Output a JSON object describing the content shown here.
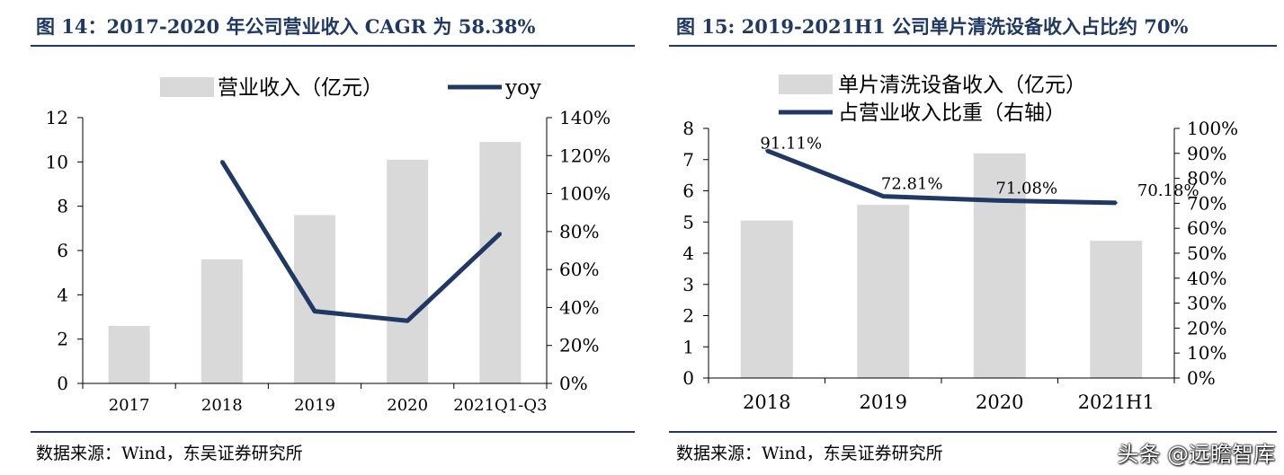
{
  "figures": [
    {
      "title": "图 14：2017-2020 年公司营业收入 CAGR 为 58.38%",
      "source": "数据来源：Wind，东吴证券研究所"
    },
    {
      "title": "图 15: 2019-2021H1 公司单片清洗设备收入占比约 70%",
      "source": "数据来源：Wind，东吴证券研究所"
    }
  ],
  "watermark": "头条 @远瞻智库",
  "colors": {
    "bar": "#d9d9d9",
    "line": "#1f3864",
    "title": "#1f3864"
  },
  "chart_data": [
    {
      "type": "bar",
      "categories": [
        "2017",
        "2018",
        "2019",
        "2020",
        "2021Q1-Q3"
      ],
      "series": [
        {
          "name": "营业收入（亿元）",
          "type": "bar",
          "axis": "left",
          "values": [
            2.6,
            5.6,
            7.6,
            10.1,
            10.9
          ]
        },
        {
          "name": "yoy",
          "type": "line",
          "axis": "right",
          "values": [
            null,
            1.17,
            0.38,
            0.33,
            0.79
          ]
        }
      ],
      "ylim": [
        0,
        12
      ],
      "yticks": [
        "0",
        "2",
        "4",
        "6",
        "8",
        "10",
        "12"
      ],
      "y2lim": [
        0,
        1.4
      ],
      "y2ticks": [
        "0%",
        "20%",
        "40%",
        "60%",
        "80%",
        "100%",
        "120%",
        "140%"
      ],
      "legend_position": "top"
    },
    {
      "type": "bar",
      "categories": [
        "2018",
        "2019",
        "2020",
        "2021H1"
      ],
      "series": [
        {
          "name": "单片清洗设备收入（亿元）",
          "type": "bar",
          "axis": "left",
          "values": [
            5.05,
            5.55,
            7.2,
            4.4
          ]
        },
        {
          "name": "占营业收入比重（右轴）",
          "type": "line",
          "axis": "right",
          "values": [
            0.9111,
            0.7281,
            0.7108,
            0.7018
          ],
          "labels": [
            "91.11%",
            "72.81%",
            "71.08%",
            "70.18%"
          ]
        }
      ],
      "ylim": [
        0,
        8
      ],
      "yticks": [
        "0",
        "1",
        "2",
        "3",
        "4",
        "5",
        "6",
        "7",
        "8"
      ],
      "y2lim": [
        0,
        1.0
      ],
      "y2ticks": [
        "0%",
        "10%",
        "20%",
        "30%",
        "40%",
        "50%",
        "60%",
        "70%",
        "80%",
        "90%",
        "100%"
      ],
      "legend_position": "top"
    }
  ]
}
